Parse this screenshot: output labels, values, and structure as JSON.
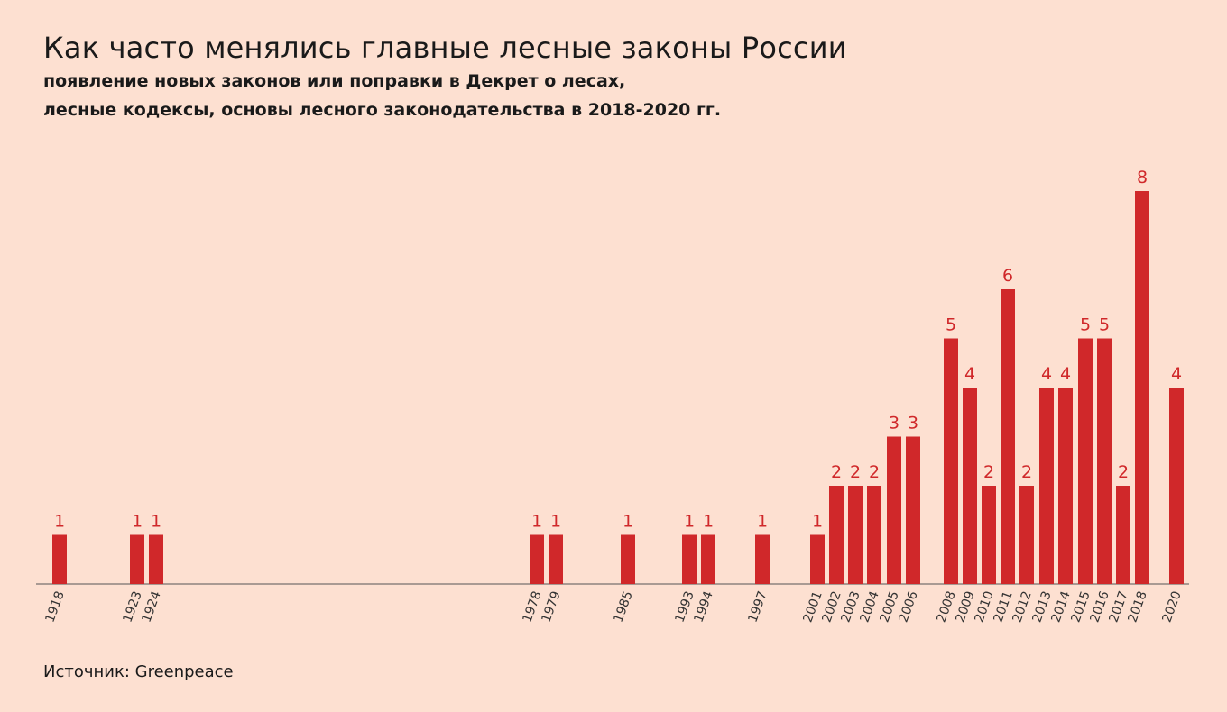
{
  "title": "Как часто менялись главные лесные законы России",
  "subtitle_line1": "появление новых законов или поправки в Декрет о лесах,",
  "subtitle_line2": "лесные кодексы, основы лесного законодательства в 2018-2020 гг.",
  "source": "Источник: Greenpeace",
  "colors": {
    "background": "#fde0d1",
    "bar": "#d0282a",
    "label": "#d0282a",
    "axis": "#555555"
  },
  "chart_data": {
    "type": "bar",
    "title": "Как часто менялись главные лесные законы России",
    "xlabel": "",
    "ylabel": "",
    "ylim": [
      0,
      8
    ],
    "grid": false,
    "categories": [
      "1918",
      "1923",
      "1924",
      "1978",
      "1979",
      "1985",
      "1993",
      "1994",
      "1997",
      "2001",
      "2002",
      "2003",
      "2004",
      "2005",
      "2006",
      "2008",
      "2009",
      "2010",
      "2011",
      "2012",
      "2013",
      "2014",
      "2015",
      "2016",
      "2017",
      "2018",
      "2020"
    ],
    "values": [
      1,
      1,
      1,
      1,
      1,
      1,
      1,
      1,
      1,
      1,
      2,
      2,
      2,
      3,
      3,
      5,
      4,
      2,
      6,
      2,
      4,
      4,
      5,
      5,
      2,
      8,
      4
    ]
  }
}
